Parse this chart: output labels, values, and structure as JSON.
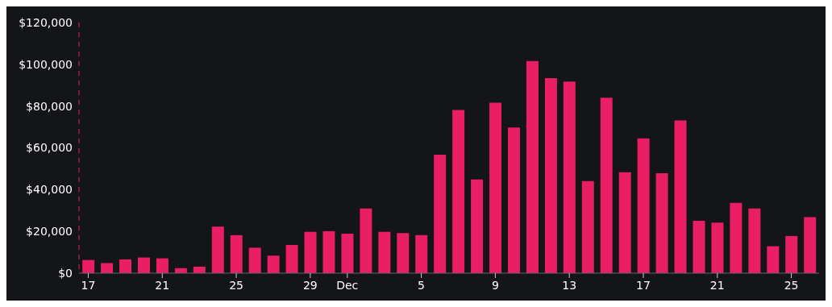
{
  "chart_data": {
    "type": "bar",
    "categories": [
      "17",
      null,
      null,
      null,
      "21",
      null,
      null,
      null,
      "25",
      null,
      null,
      null,
      "29",
      null,
      "Dec",
      null,
      null,
      null,
      "5",
      null,
      null,
      null,
      "9",
      null,
      null,
      null,
      "13",
      null,
      null,
      null,
      "17",
      null,
      null,
      null,
      "21",
      null,
      null,
      null,
      "25",
      null
    ],
    "values": [
      6300,
      4800,
      6600,
      7500,
      7100,
      2400,
      3100,
      22300,
      18200,
      12200,
      8400,
      13500,
      19800,
      20100,
      18900,
      31000,
      19800,
      19200,
      18200,
      56700,
      78100,
      44900,
      81600,
      69700,
      101600,
      93400,
      91700,
      44100,
      84000,
      48300,
      64500,
      47800,
      73100,
      25100,
      24200,
      33700,
      31000,
      12900,
      17800,
      26800
    ],
    "color": "#e91e63",
    "ylim": [
      0,
      120000
    ],
    "yticks": [
      {
        "value": 0,
        "label": "$0"
      },
      {
        "value": 20000,
        "label": "$20,000"
      },
      {
        "value": 40000,
        "label": "$40,000"
      },
      {
        "value": 60000,
        "label": "$60,000"
      },
      {
        "value": 80000,
        "label": "$80,000"
      },
      {
        "value": 100000,
        "label": "$100,000"
      },
      {
        "value": 120000,
        "label": "$120,000"
      }
    ],
    "grid": false,
    "legend": false
  }
}
